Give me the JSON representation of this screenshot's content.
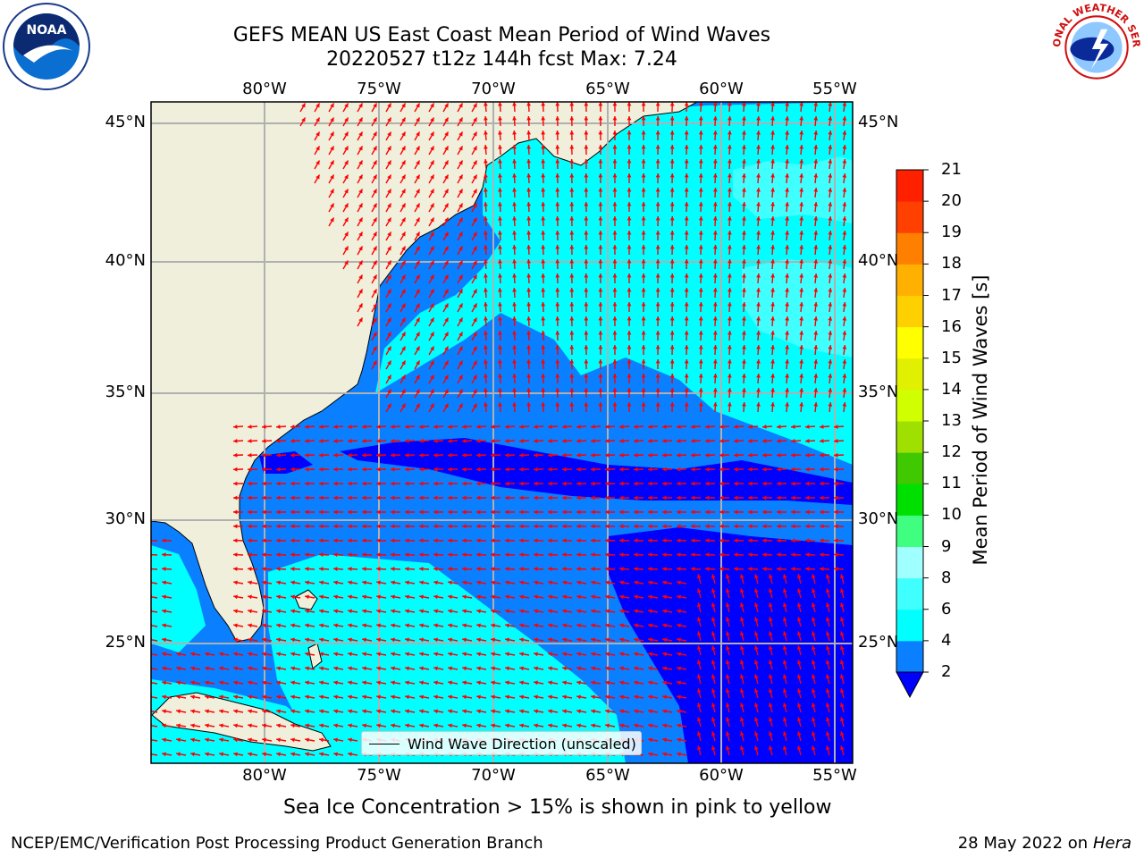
{
  "title": {
    "line1": "GEFS MEAN US East Coast Mean Period of Wind Waves",
    "line2": "20220527 t12z 144h fcst   Max: 7.24"
  },
  "map": {
    "lon_labels": [
      "80°W",
      "75°W",
      "70°W",
      "65°W",
      "60°W",
      "55°W"
    ],
    "lat_labels": [
      "45°N",
      "40°N",
      "35°N",
      "30°N",
      "25°N"
    ],
    "lon_range": [
      -85,
      -54.3
    ],
    "lat_range": [
      20.5,
      46
    ],
    "land_color": "#efefdb",
    "grid_color": "#b0b0b0",
    "vector_color": "#ff0000",
    "vector_legend": "Wind Wave Direction (unscaled)"
  },
  "colorbar": {
    "label": "Mean Period of Wind Waves [s]",
    "ticks": [
      "2",
      "4",
      "6",
      "8",
      "9",
      "10",
      "11",
      "12",
      "13",
      "14",
      "15",
      "16",
      "17",
      "18",
      "19",
      "20",
      "21"
    ],
    "colors": [
      "#0000ff",
      "#0a7fff",
      "#00ffff",
      "#40ffff",
      "#a0ffff",
      "#40ff80",
      "#00e000",
      "#40c800",
      "#a0e000",
      "#d0ff00",
      "#e0f000",
      "#ffff00",
      "#ffd000",
      "#ffb000",
      "#ff8000",
      "#ff4000",
      "#ff2000",
      "#ff0000"
    ]
  },
  "logos": {
    "noaa": "NOAA",
    "nws": "NATIONAL WEATHER SERVICE"
  },
  "notes": {
    "sea_ice": "Sea Ice Concentration > 15% is shown in pink to yellow",
    "producer": "NCEP/EMC/Verification Post Processing Product Generation Branch",
    "date": "28 May 2022 on",
    "machine": "Hera"
  }
}
